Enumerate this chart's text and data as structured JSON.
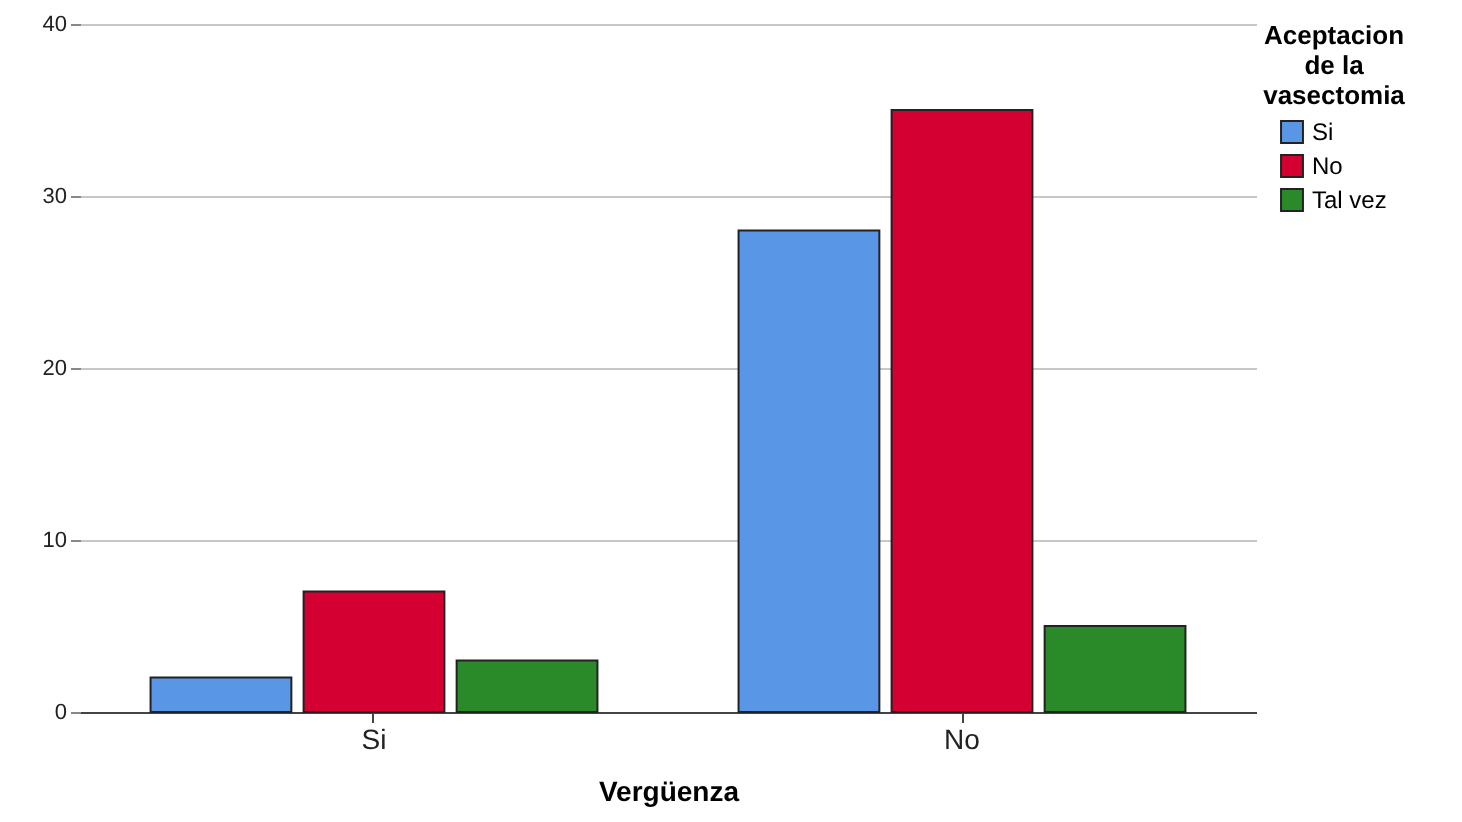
{
  "chart_data": {
    "type": "bar",
    "xlabel": "Vergüenza",
    "legend_title": "Aceptacion de la vasectomia",
    "categories": [
      "Si",
      "No"
    ],
    "series": [
      {
        "name": "Si",
        "color": "#5a96e6",
        "values": [
          2,
          28
        ]
      },
      {
        "name": "No",
        "color": "#d50032",
        "values": [
          7,
          35
        ]
      },
      {
        "name": "Tal vez",
        "color": "#2a8a2a",
        "values": [
          3,
          5
        ]
      }
    ],
    "ylim": [
      0,
      40
    ],
    "yticks": [
      0,
      10,
      20,
      30,
      40
    ],
    "grid": "y",
    "legend": "top right"
  }
}
